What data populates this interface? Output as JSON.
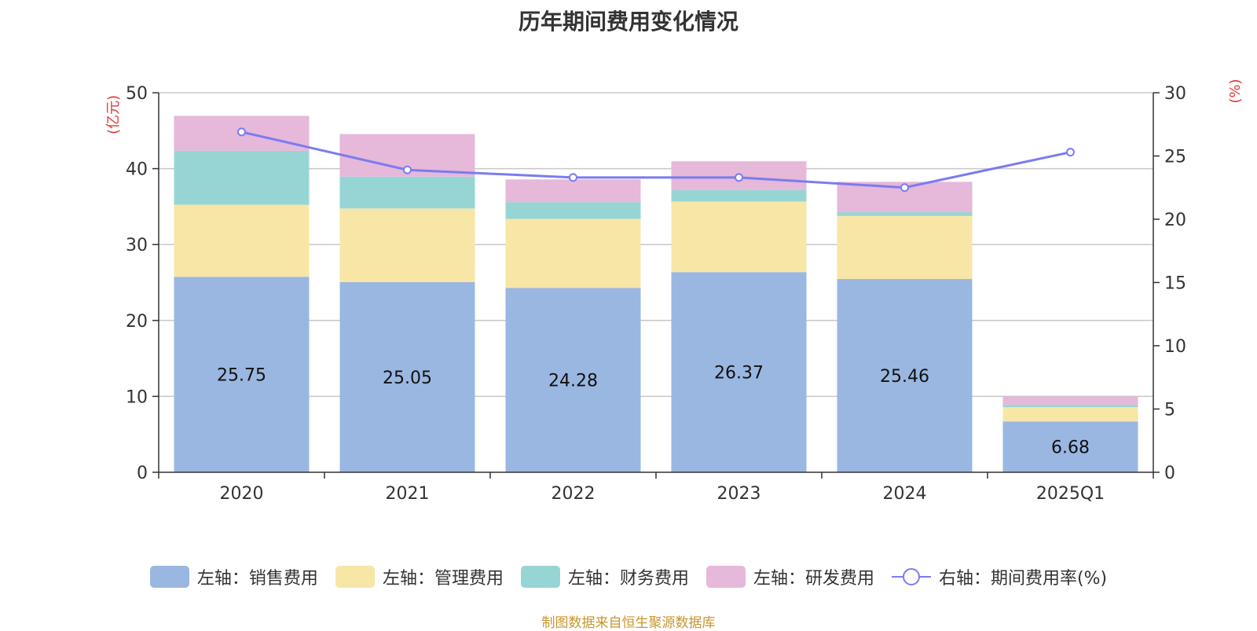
{
  "title": "历年期间费用变化情况",
  "source_note": "制图数据来自恒生聚源数据库",
  "colors": {
    "sales": "#9ab7e1",
    "admin": "#f7e6a6",
    "finance": "#97d5d4",
    "rnd": "#e6b8d9",
    "rate_line": "#7a7cf0"
  },
  "legend": [
    {
      "key": "sales",
      "label": "左轴：销售费用",
      "kind": "bar"
    },
    {
      "key": "admin",
      "label": "左轴：管理费用",
      "kind": "bar"
    },
    {
      "key": "finance",
      "label": "左轴：财务费用",
      "kind": "bar"
    },
    {
      "key": "rnd",
      "label": "左轴：研发费用",
      "kind": "bar"
    },
    {
      "key": "rate_line",
      "label": "右轴：期间费用率(%)",
      "kind": "line"
    }
  ],
  "chart_data": {
    "type": "bar",
    "stacked": true,
    "title": "历年期间费用变化情况",
    "categories": [
      "2020",
      "2021",
      "2022",
      "2023",
      "2024",
      "2025Q1"
    ],
    "left_axis": {
      "unit": "(亿元)",
      "ylim": [
        0,
        50
      ],
      "ticks": [
        "0",
        "10",
        "20",
        "30",
        "40",
        "50"
      ]
    },
    "right_axis": {
      "unit": "(%)",
      "ylim": [
        0,
        30
      ],
      "ticks": [
        "0",
        "5",
        "10",
        "15",
        "20",
        "25",
        "30"
      ]
    },
    "series": [
      {
        "name": "左轴：销售费用",
        "key": "sales",
        "axis": "left",
        "values": [
          25.75,
          25.05,
          24.28,
          26.37,
          25.46,
          6.68
        ],
        "data_labels": [
          "25.75",
          "25.05",
          "24.28",
          "26.37",
          "25.46",
          "6.68"
        ]
      },
      {
        "name": "左轴：管理费用",
        "key": "admin",
        "axis": "left",
        "values": [
          9.5,
          9.7,
          9.1,
          9.3,
          8.3,
          1.9
        ]
      },
      {
        "name": "左轴：财务费用",
        "key": "finance",
        "axis": "left",
        "values": [
          7.1,
          4.2,
          2.2,
          1.5,
          0.5,
          0.3
        ]
      },
      {
        "name": "左轴：研发费用",
        "key": "rnd",
        "axis": "left",
        "values": [
          4.6,
          5.6,
          3.0,
          3.8,
          4.0,
          1.1
        ]
      },
      {
        "name": "右轴：期间费用率(%)",
        "key": "rate_line",
        "axis": "right",
        "type": "line",
        "values": [
          26.9,
          23.9,
          23.3,
          23.3,
          22.5,
          25.3
        ]
      }
    ],
    "grid": true,
    "legend_position": "bottom"
  }
}
